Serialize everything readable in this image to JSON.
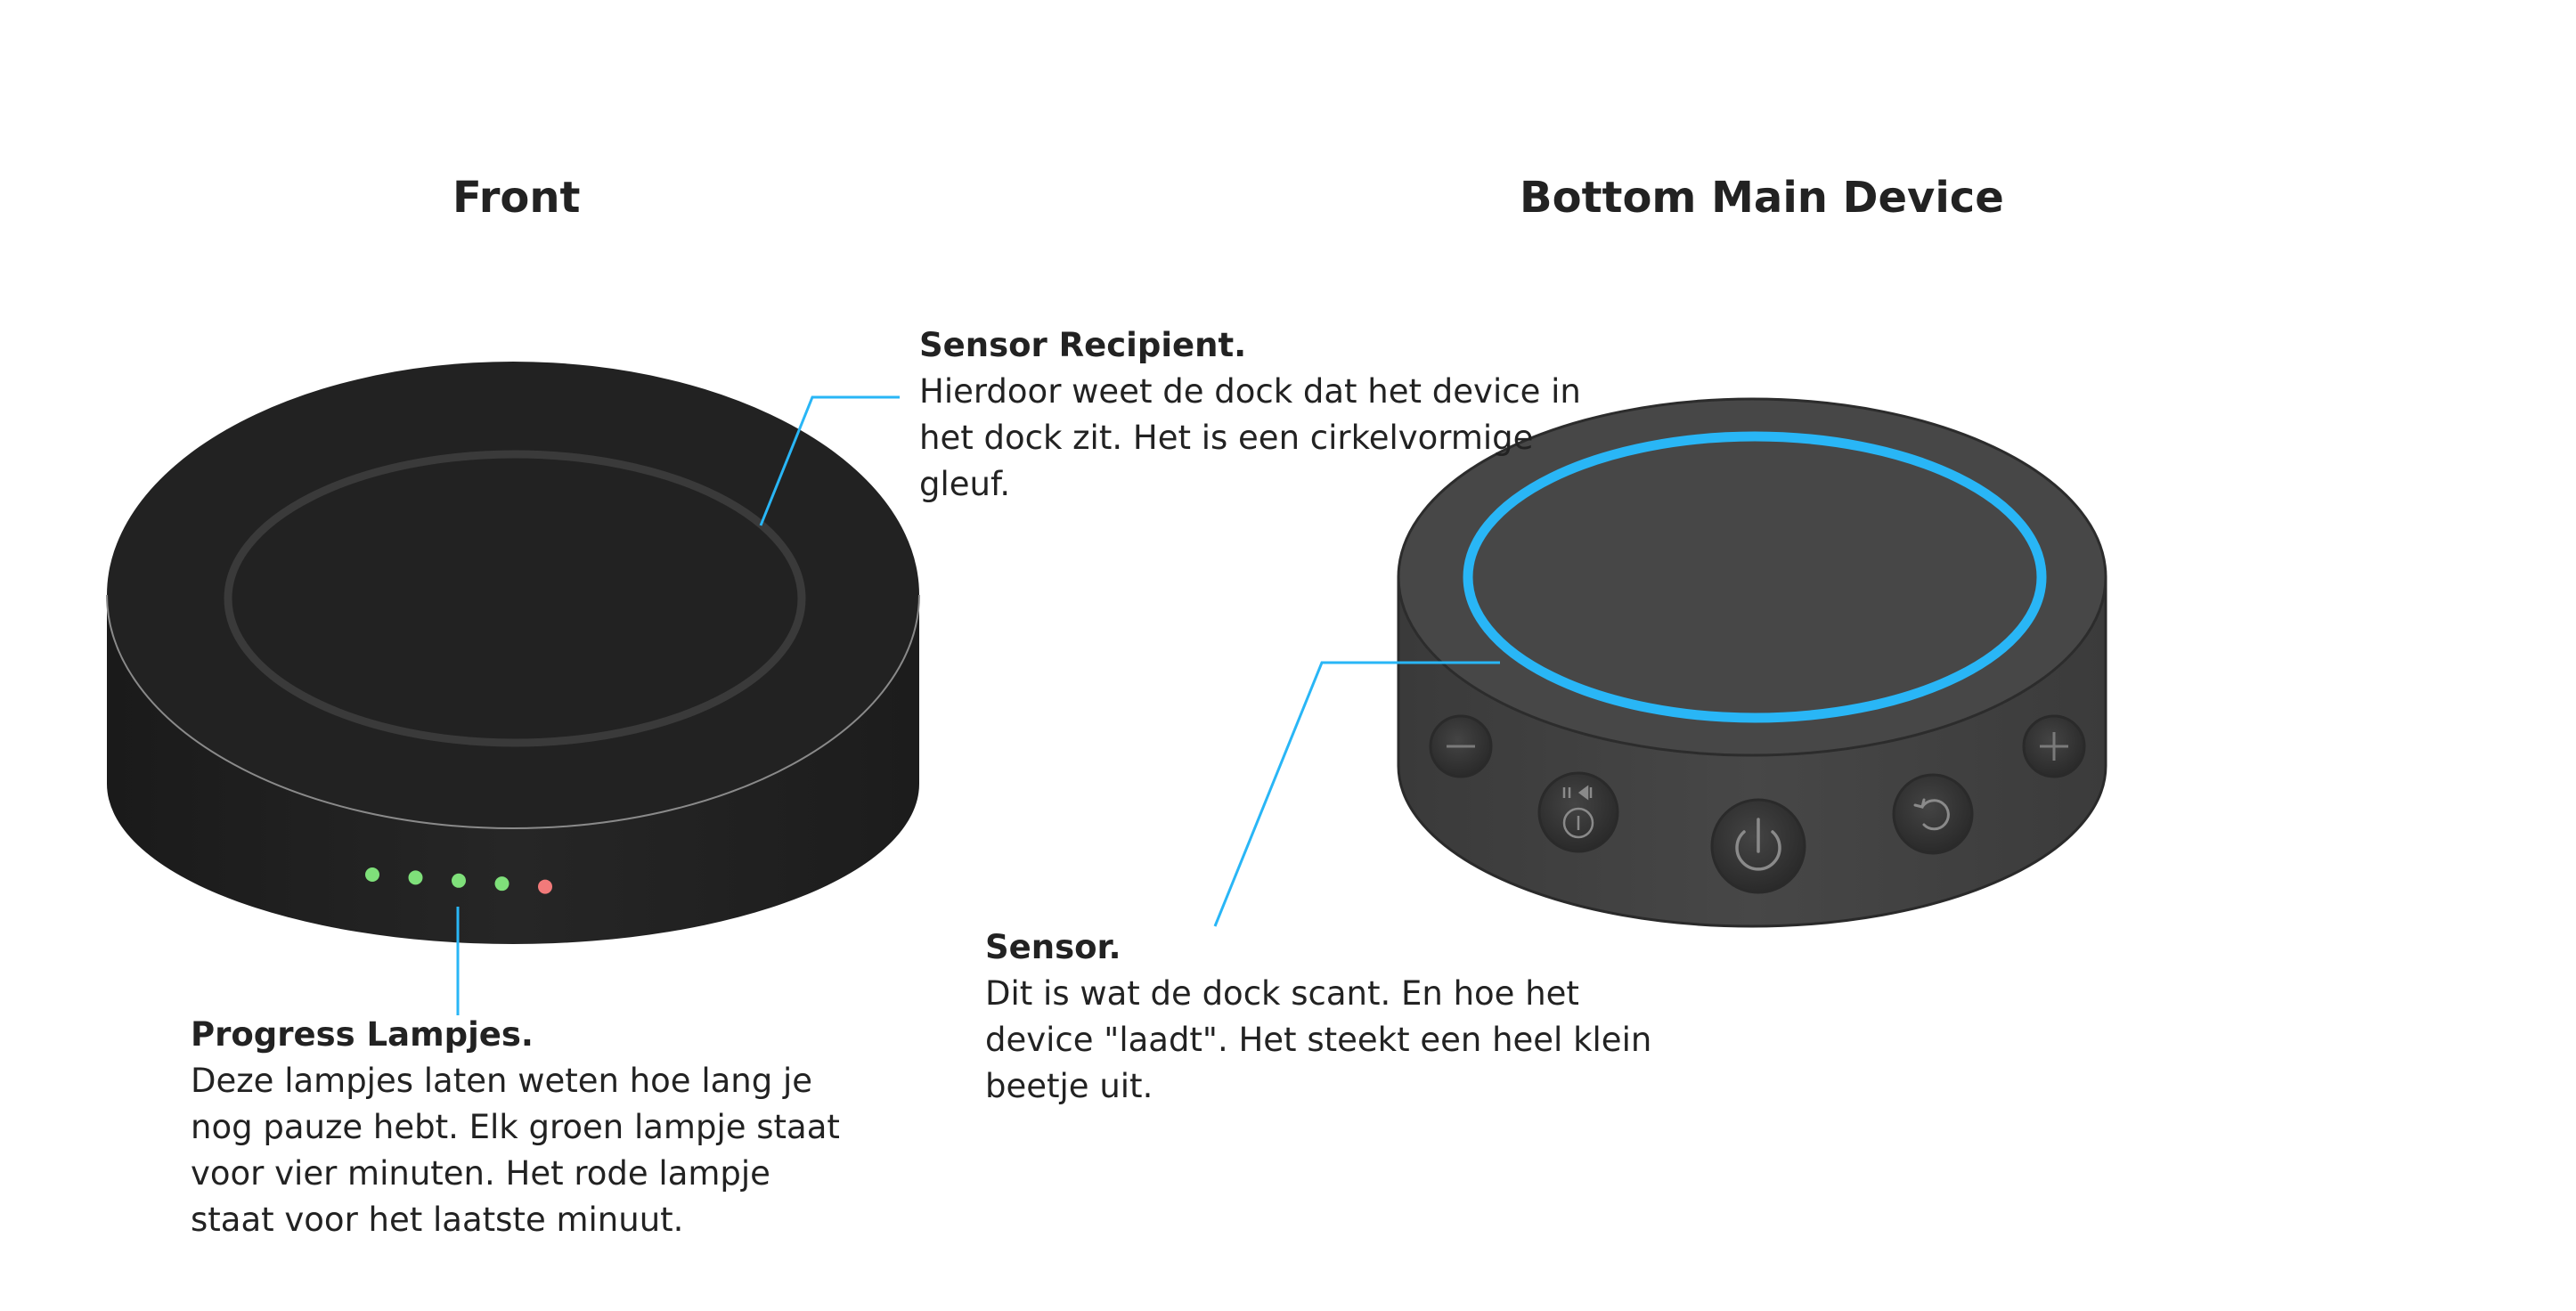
{
  "headings": {
    "front": "Front",
    "bottom": "Bottom Main Device"
  },
  "callouts": {
    "sensor_recipient": {
      "title": "Sensor Recipient.",
      "body": "Hierdoor weet de dock dat het device in het dock zit. Het is een cirkelvormige gleuf."
    },
    "progress": {
      "title": "Progress Lampjes.",
      "body": "Deze lampjes laten weten hoe lang je nog pauze hebt. Elk groen lampje staat voor vier minuten. Het rode lampje staat voor het laatste minuut."
    },
    "sensor": {
      "title": "Sensor.",
      "body": "Dit is wat de dock scant. En hoe het device \"laadt\". Het steekt een heel klein beetje uit."
    }
  },
  "lamps": [
    {
      "color": "green"
    },
    {
      "color": "green"
    },
    {
      "color": "green"
    },
    {
      "color": "green"
    },
    {
      "color": "red"
    }
  ],
  "colors": {
    "leader_line": "#29b6f6",
    "sensor_ring": "#29b6f6",
    "dock_body": "#222222",
    "device_body": "#464646",
    "lamp_green": "#7fe07a",
    "lamp_red": "#f27a7a"
  }
}
